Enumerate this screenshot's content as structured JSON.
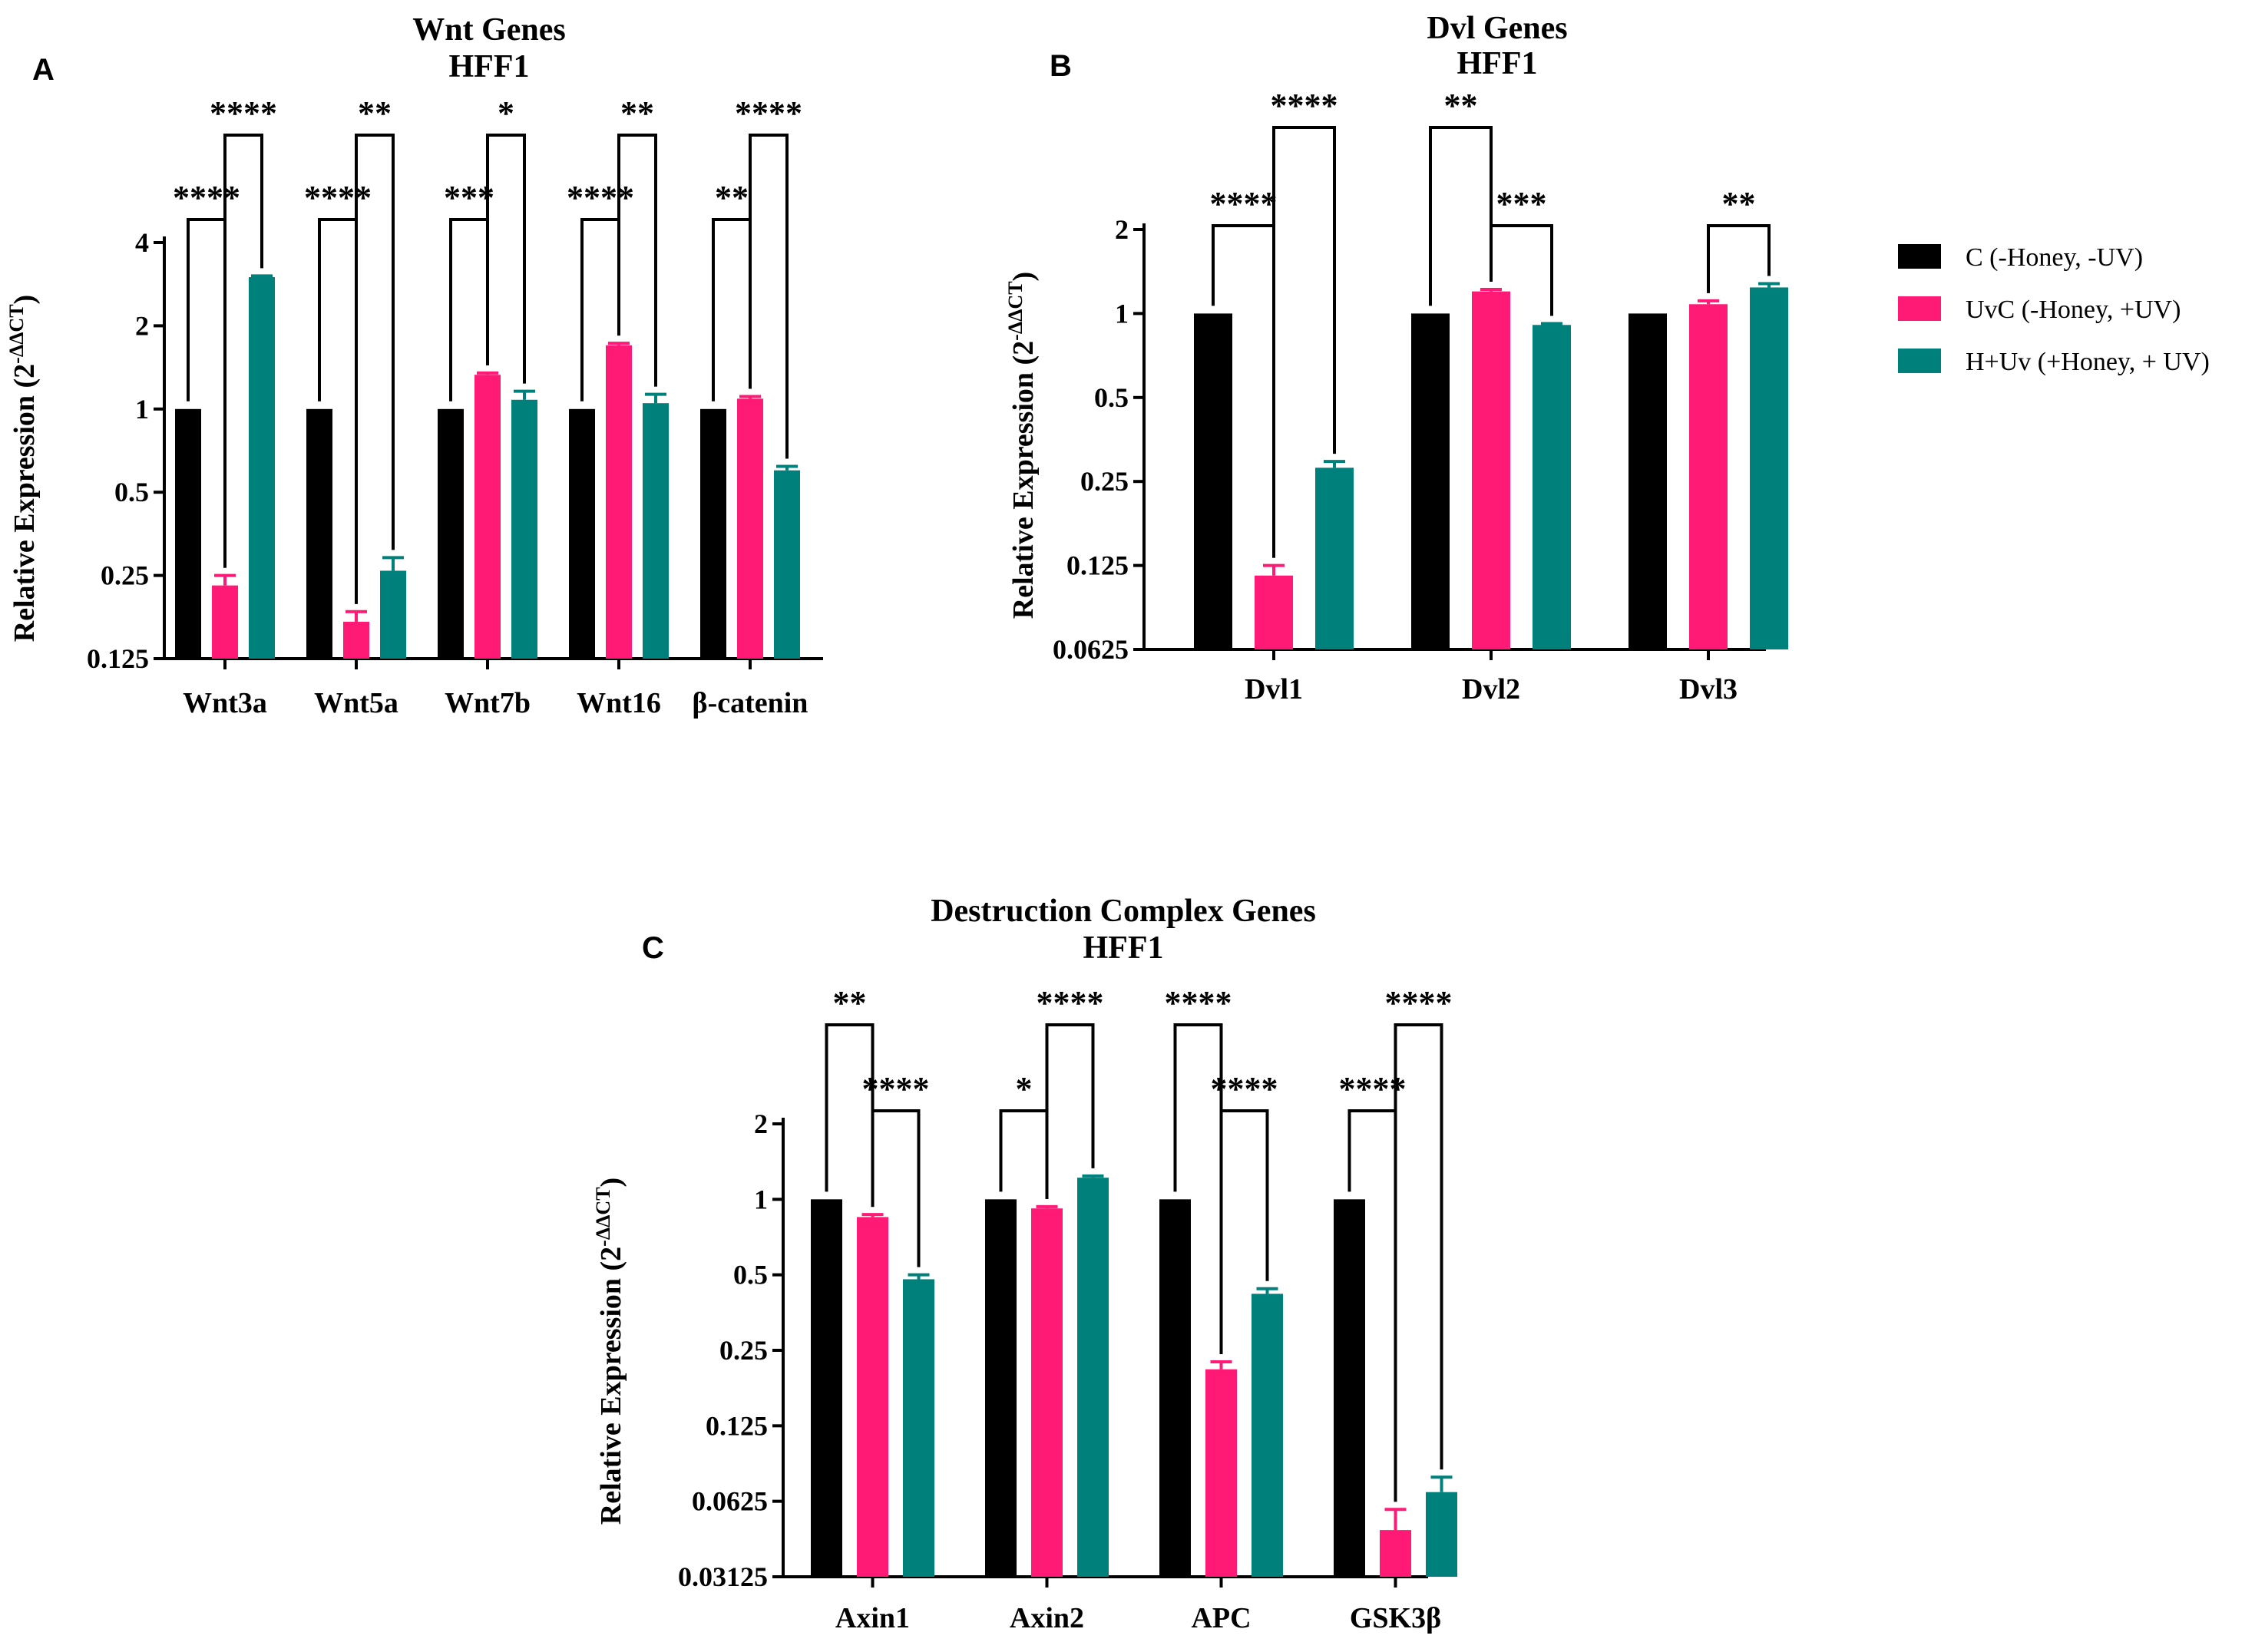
{
  "legend": [
    {
      "label": "C (-Honey, -UV)",
      "color": "#000000"
    },
    {
      "label": "UvC (-Honey, +UV)",
      "color": "#ff1a75"
    },
    {
      "label": "H+Uv (+Honey, + UV)",
      "color": "#00807a"
    }
  ],
  "chart_data": [
    {
      "type": "bar",
      "panel": "A",
      "title": "Wnt Genes",
      "subtitle": "HFF1",
      "ylabel": "Relative Expression (2",
      "ylabel_sup": "-ΔΔCT",
      "ylabel_close": ")",
      "yscale": "log2",
      "ylim": [
        0.125,
        4
      ],
      "yticks": [
        "0.125",
        "0.25",
        "0.5",
        "1",
        "2",
        "4"
      ],
      "categories": [
        "Wnt3a",
        "Wnt5a",
        "Wnt7b",
        "Wnt16",
        "β-catenin"
      ],
      "series": [
        {
          "name": "C (-Honey, -UV)",
          "values": [
            1,
            1,
            1,
            1,
            1
          ],
          "errors": [
            0,
            0,
            0,
            0,
            0
          ]
        },
        {
          "name": "UvC (-Honey, +UV)",
          "values": [
            0.23,
            0.17,
            1.33,
            1.7,
            1.09
          ],
          "errors": [
            0.02,
            0.015,
            0.02,
            0.03,
            0.02
          ]
        },
        {
          "name": "H+Uv (+Honey, + UV)",
          "values": [
            3.0,
            0.26,
            1.08,
            1.05,
            0.6
          ],
          "errors": [
            0.03,
            0.03,
            0.08,
            0.08,
            0.02
          ]
        }
      ],
      "significance": [
        {
          "category": 0,
          "pair": [
            0,
            1
          ],
          "level": 1,
          "label": "****"
        },
        {
          "category": 0,
          "pair": [
            1,
            2
          ],
          "level": 2,
          "label": "****"
        },
        {
          "category": 1,
          "pair": [
            0,
            1
          ],
          "level": 1,
          "label": "****"
        },
        {
          "category": 1,
          "pair": [
            1,
            2
          ],
          "level": 2,
          "label": "**"
        },
        {
          "category": 2,
          "pair": [
            0,
            1
          ],
          "level": 1,
          "label": "***"
        },
        {
          "category": 2,
          "pair": [
            1,
            2
          ],
          "level": 2,
          "label": "*"
        },
        {
          "category": 3,
          "pair": [
            0,
            1
          ],
          "level": 1,
          "label": "****"
        },
        {
          "category": 3,
          "pair": [
            1,
            2
          ],
          "level": 2,
          "label": "**"
        },
        {
          "category": 4,
          "pair": [
            0,
            1
          ],
          "level": 1,
          "label": "**"
        },
        {
          "category": 4,
          "pair": [
            1,
            2
          ],
          "level": 2,
          "label": "****"
        }
      ]
    },
    {
      "type": "bar",
      "panel": "B",
      "title": "Dvl Genes",
      "subtitle": "HFF1",
      "ylabel": "Relative Expression (2",
      "ylabel_sup": "-ΔΔCT",
      "ylabel_close": ")",
      "yscale": "log2",
      "ylim": [
        0.0625,
        2
      ],
      "yticks": [
        "0.0625",
        "0.125",
        "0.25",
        "0.5",
        "1",
        "2"
      ],
      "categories": [
        "Dvl1",
        "Dvl2",
        "Dvl3"
      ],
      "series": [
        {
          "name": "C (-Honey, -UV)",
          "values": [
            1,
            1,
            1
          ],
          "errors": [
            0,
            0,
            0
          ]
        },
        {
          "name": "UvC (-Honey, +UV)",
          "values": [
            0.115,
            1.2,
            1.08
          ],
          "errors": [
            0.01,
            0.02,
            0.03
          ]
        },
        {
          "name": "H+Uv (+Honey, + UV)",
          "values": [
            0.28,
            0.91,
            1.24
          ],
          "errors": [
            0.015,
            0.01,
            0.04
          ]
        }
      ],
      "significance": [
        {
          "category": 0,
          "pair": [
            0,
            1
          ],
          "level": 1,
          "label": "****"
        },
        {
          "category": 0,
          "pair": [
            1,
            2
          ],
          "level": 2,
          "label": "****"
        },
        {
          "category": 1,
          "pair": [
            0,
            1
          ],
          "level": 2,
          "label": "**"
        },
        {
          "category": 1,
          "pair": [
            1,
            2
          ],
          "level": 1,
          "label": "***"
        },
        {
          "category": 2,
          "pair": [
            1,
            2
          ],
          "level": 1,
          "label": "**"
        }
      ]
    },
    {
      "type": "bar",
      "panel": "C",
      "title": "Destruction Complex Genes",
      "subtitle": "HFF1",
      "ylabel": "Relative Expression (2",
      "ylabel_sup": "-ΔΔCT",
      "ylabel_close": ")",
      "yscale": "log2",
      "ylim": [
        0.03125,
        2
      ],
      "yticks": [
        "0.03125",
        "0.0625",
        "0.125",
        "0.25",
        "0.5",
        "1",
        "2"
      ],
      "categories": [
        "Axin1",
        "Axin2",
        "APC",
        "GSK3β"
      ],
      "series": [
        {
          "name": "C (-Honey, -UV)",
          "values": [
            1,
            1,
            1,
            1
          ],
          "errors": [
            0,
            0,
            0,
            0
          ]
        },
        {
          "name": "UvC (-Honey, +UV)",
          "values": [
            0.85,
            0.92,
            0.21,
            0.048
          ],
          "errors": [
            0.02,
            0.015,
            0.015,
            0.01
          ]
        },
        {
          "name": "H+Uv (+Honey, + UV)",
          "values": [
            0.48,
            1.22,
            0.42,
            0.068
          ],
          "errors": [
            0.02,
            0.02,
            0.02,
            0.01
          ]
        }
      ],
      "significance": [
        {
          "category": 0,
          "pair": [
            0,
            1
          ],
          "level": 2,
          "label": "**"
        },
        {
          "category": 0,
          "pair": [
            1,
            2
          ],
          "level": 1,
          "label": "****"
        },
        {
          "category": 1,
          "pair": [
            0,
            1
          ],
          "level": 1,
          "label": "*"
        },
        {
          "category": 1,
          "pair": [
            1,
            2
          ],
          "level": 2,
          "label": "****"
        },
        {
          "category": 2,
          "pair": [
            0,
            1
          ],
          "level": 2,
          "label": "****"
        },
        {
          "category": 2,
          "pair": [
            1,
            2
          ],
          "level": 1,
          "label": "****"
        },
        {
          "category": 3,
          "pair": [
            0,
            1
          ],
          "level": 1,
          "label": "****"
        },
        {
          "category": 3,
          "pair": [
            1,
            2
          ],
          "level": 2,
          "label": "****"
        }
      ]
    }
  ]
}
